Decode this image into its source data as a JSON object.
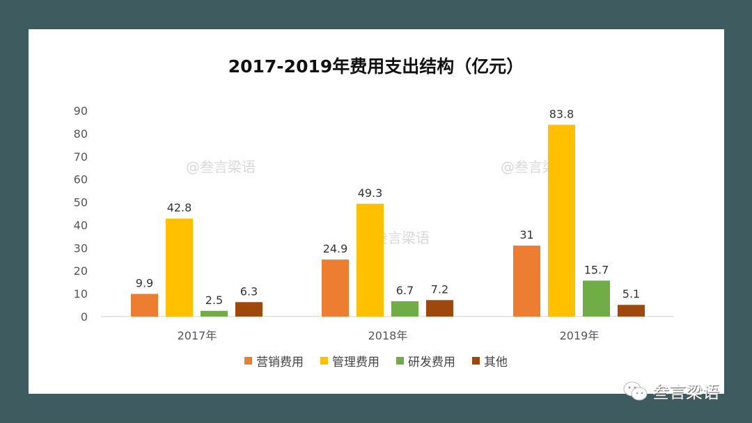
{
  "chart_data": {
    "type": "bar",
    "title": "2017-2019年费用支出结构（亿元）",
    "categories": [
      "2017年",
      "2018年",
      "2019年"
    ],
    "series": [
      {
        "name": "营销费用",
        "color": "#ed7d31",
        "values": [
          9.9,
          24.9,
          31
        ]
      },
      {
        "name": "管理费用",
        "color": "#ffc000",
        "values": [
          42.8,
          49.3,
          83.8
        ]
      },
      {
        "name": "研发费用",
        "color": "#70ad47",
        "values": [
          2.5,
          6.7,
          15.7
        ]
      },
      {
        "name": "其他",
        "color": "#9e480e",
        "values": [
          6.3,
          7.2,
          5.1
        ]
      }
    ],
    "ylim": [
      0,
      90
    ],
    "yticks": [
      0,
      10,
      20,
      30,
      40,
      50,
      60,
      70,
      80,
      90
    ],
    "grid": false,
    "legend": "bottom"
  },
  "watermarks": [
    "@叁言梁语",
    "@叁言梁语",
    "@叁言梁语"
  ],
  "brand": {
    "name": "叁言梁语",
    "icon": "wechat-icon"
  }
}
